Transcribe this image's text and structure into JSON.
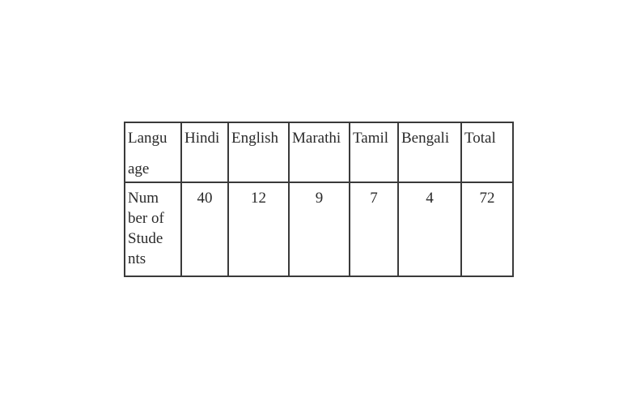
{
  "table": {
    "header_label_lines": [
      "Langu",
      "age"
    ],
    "row_label_lines": [
      "Num",
      "ber of",
      "Stude",
      "nts"
    ],
    "languages": [
      "Hindi",
      "English",
      "Marathi",
      "Tamil",
      "Bengali"
    ],
    "total_label": "Total",
    "counts": [
      "40",
      "12",
      "9",
      "7",
      "4"
    ],
    "total_count": "72"
  }
}
